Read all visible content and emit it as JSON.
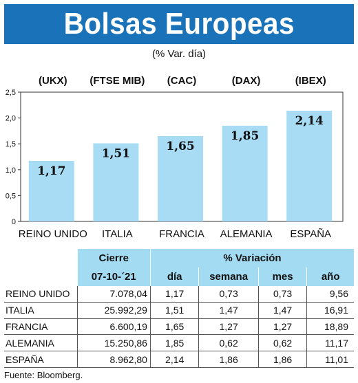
{
  "header": {
    "title": "Bolsas Europeas",
    "subtitle": "(% Var. día)"
  },
  "chart_data": {
    "type": "bar",
    "title": "Bolsas Europeas",
    "subtitle": "(% Var. día)",
    "categories": [
      "REINO UNIDO",
      "ITALIA",
      "FRANCIA",
      "ALEMANIA",
      "ESPAÑA"
    ],
    "index_codes": [
      "(UKX)",
      "(FTSE MIB)",
      "(CAC)",
      "(DAX)",
      "(IBEX)"
    ],
    "values": [
      1.17,
      1.51,
      1.65,
      1.85,
      2.14
    ],
    "value_labels": [
      "1,17",
      "1,51",
      "1,65",
      "1,85",
      "2,14"
    ],
    "ylim": [
      0,
      2.5
    ],
    "yticks": [
      "0",
      "0,5",
      "1,0",
      "1,5",
      "2,0",
      "2,5"
    ],
    "xlabel": "",
    "ylabel": "",
    "grid": false,
    "bar_color": "#a8dcf4"
  },
  "table": {
    "group_headers": {
      "cierre": "Cierre",
      "variacion": "% Variación"
    },
    "sub_headers": {
      "date": "07-10-´21",
      "dia": "día",
      "semana": "semana",
      "mes": "mes",
      "ano": "año"
    },
    "rows": [
      {
        "name": "REINO UNIDO",
        "cierre": "7.078,04",
        "dia": "1,17",
        "semana": "0,73",
        "mes": "0,73",
        "ano": "9,56"
      },
      {
        "name": "ITALIA",
        "cierre": "25.992,29",
        "dia": "1,51",
        "semana": "1,47",
        "mes": "1,47",
        "ano": "16,91"
      },
      {
        "name": "FRANCIA",
        "cierre": "6.600,19",
        "dia": "1,65",
        "semana": "1,27",
        "mes": "1,27",
        "ano": "18,89"
      },
      {
        "name": "ALEMANIA",
        "cierre": "15.250,86",
        "dia": "1,85",
        "semana": "0,62",
        "mes": "0,62",
        "ano": "11,17"
      },
      {
        "name": "ESPAÑA",
        "cierre": "8.962,80",
        "dia": "2,14",
        "semana": "1,86",
        "mes": "1,86",
        "ano": "11,01"
      }
    ]
  },
  "source": "Fuente: Bloomberg.",
  "colors": {
    "banner": "#1a73b9",
    "header_fill": "#a3dcf2"
  }
}
